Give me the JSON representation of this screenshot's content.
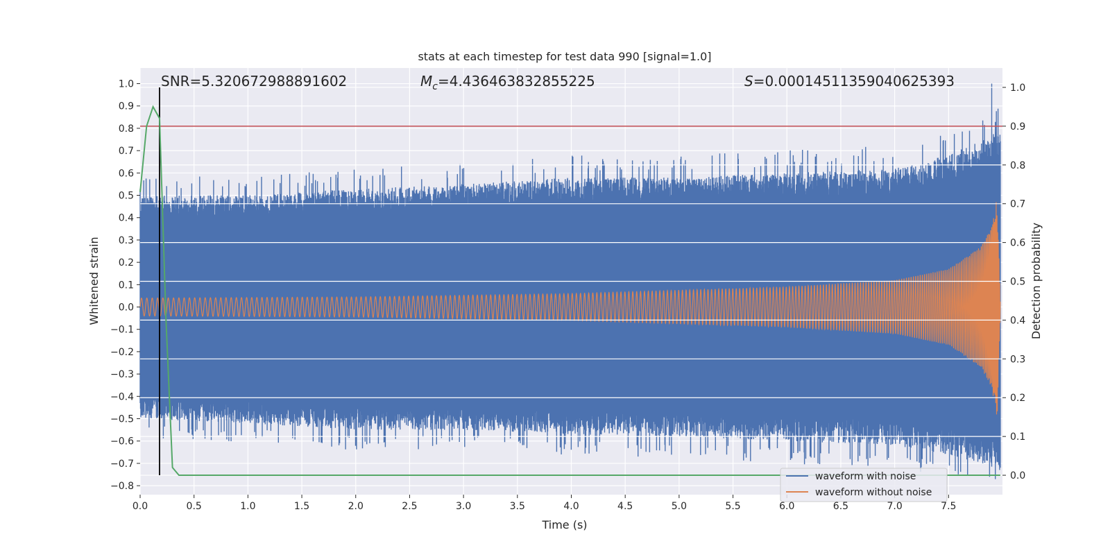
{
  "chart_data": {
    "type": "line",
    "title": "stats at each timestep for test data 990 [signal=1.0]",
    "xlabel": "Time (s)",
    "ylabel_left": "Whitened strain",
    "ylabel_right": "Detection probability",
    "xlim": [
      0.0,
      8.0
    ],
    "ylim_left": [
      -0.84,
      1.07
    ],
    "ylim_right": [
      -0.05,
      1.05
    ],
    "x_ticks": [
      "0.0",
      "0.5",
      "1.0",
      "1.5",
      "2.0",
      "2.5",
      "3.0",
      "3.5",
      "4.0",
      "4.5",
      "5.0",
      "5.5",
      "6.0",
      "6.5",
      "7.0",
      "7.5"
    ],
    "y_ticks_left": [
      "1.0",
      "0.9",
      "0.8",
      "0.7",
      "0.6",
      "0.5",
      "0.4",
      "0.3",
      "0.2",
      "0.1",
      "0.0",
      "−0.1",
      "−0.2",
      "−0.3",
      "−0.4",
      "−0.5",
      "−0.6",
      "−0.7",
      "−0.8"
    ],
    "y_ticks_right": [
      "1.0",
      "0.9",
      "0.8",
      "0.7",
      "0.6",
      "0.5",
      "0.4",
      "0.3",
      "0.2",
      "0.1",
      "0.0"
    ],
    "grid": true,
    "legend_position": "bottom-right",
    "annotations": {
      "snr": "SNR=5.320672988891602",
      "mc_symbol": "M",
      "mc_sub": "c",
      "mc_value": "=4.436463832855225",
      "s_symbol": "S",
      "s_value": "=0.0001451135904062539​3"
    },
    "series": [
      {
        "name": "waveform with noise",
        "color": "#4c72b0",
        "axis": "left",
        "t_end": 7.98,
        "envelope_upper": [
          [
            0.0,
            0.5
          ],
          [
            1.0,
            0.5
          ],
          [
            2.0,
            0.53
          ],
          [
            3.0,
            0.55
          ],
          [
            4.0,
            0.58
          ],
          [
            5.0,
            0.58
          ],
          [
            6.0,
            0.6
          ],
          [
            7.0,
            0.62
          ],
          [
            7.5,
            0.68
          ],
          [
            7.8,
            0.75
          ],
          [
            7.98,
            0.8
          ]
        ],
        "envelope_lower": [
          [
            0.0,
            -0.5
          ],
          [
            1.0,
            -0.52
          ],
          [
            2.0,
            -0.55
          ],
          [
            3.0,
            -0.55
          ],
          [
            4.0,
            -0.57
          ],
          [
            5.0,
            -0.58
          ],
          [
            6.0,
            -0.6
          ],
          [
            7.0,
            -0.62
          ],
          [
            7.5,
            -0.66
          ],
          [
            7.8,
            -0.7
          ],
          [
            7.98,
            -0.74
          ]
        ],
        "max_spike": [
          7.9,
          1.0
        ],
        "min_spike": [
          7.88,
          -0.76
        ]
      },
      {
        "name": "waveform without noise",
        "color": "#dd8452",
        "axis": "left",
        "t_end": 7.98,
        "amplitude": [
          [
            0.0,
            0.04
          ],
          [
            2.0,
            0.045
          ],
          [
            4.0,
            0.06
          ],
          [
            6.0,
            0.09
          ],
          [
            7.0,
            0.12
          ],
          [
            7.5,
            0.17
          ],
          [
            7.8,
            0.27
          ],
          [
            7.9,
            0.36
          ],
          [
            7.95,
            0.5
          ],
          [
            7.98,
            0.03
          ]
        ]
      },
      {
        "name": "detection probability",
        "color": "#55a868",
        "axis": "right",
        "points": [
          [
            0.0,
            0.73
          ],
          [
            0.06,
            0.9
          ],
          [
            0.12,
            0.95
          ],
          [
            0.18,
            0.92
          ],
          [
            0.24,
            0.4
          ],
          [
            0.3,
            0.02
          ],
          [
            0.36,
            0.0
          ],
          [
            7.98,
            0.0
          ]
        ]
      }
    ],
    "threshold_line": {
      "axis": "right",
      "value": 0.9,
      "color": "#c44e52"
    },
    "marker_line": {
      "x": 0.18,
      "color": "#000000"
    },
    "style": {
      "background": "#eaeaf2",
      "grid_color": "#ffffff"
    }
  }
}
